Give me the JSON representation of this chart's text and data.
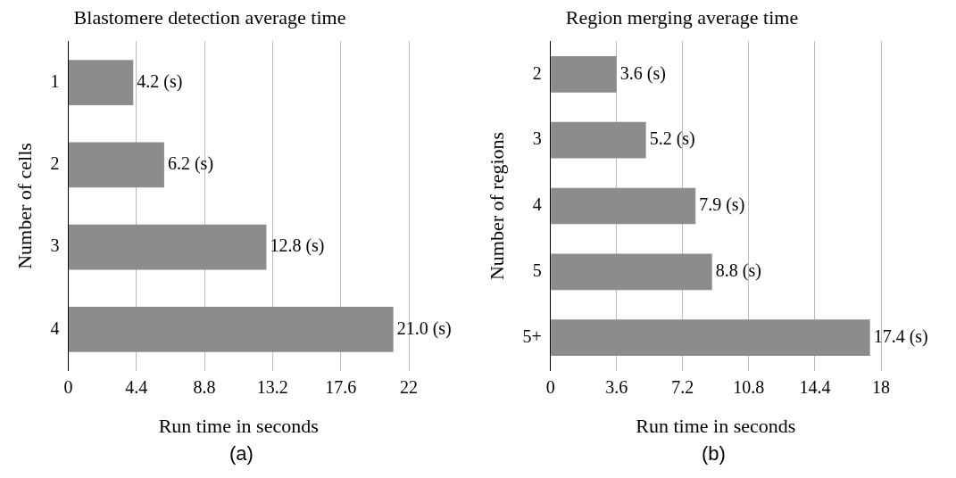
{
  "chart_data": [
    {
      "type": "bar",
      "orientation": "horizontal",
      "title": "Blastomere detection average time",
      "xlabel": "Run time in seconds",
      "ylabel": "Number of cells",
      "categories": [
        "1",
        "2",
        "3",
        "4"
      ],
      "values": [
        4.2,
        6.2,
        12.8,
        21.0
      ],
      "value_labels": [
        "4.2 (s)",
        "6.2 (s)",
        "12.8 (s)",
        "21.0 (s)"
      ],
      "color": "#8c8c8e",
      "xlim": [
        0,
        22
      ],
      "xticks": [
        0,
        4.4,
        8.8,
        13.2,
        17.6,
        22
      ],
      "grid": "x",
      "annotations": [
        "(a)"
      ]
    },
    {
      "type": "bar",
      "orientation": "horizontal",
      "title": "Region merging average time",
      "xlabel": "Run time in seconds",
      "ylabel": "Number of regions",
      "categories": [
        "2",
        "3",
        "4",
        "5",
        "5+"
      ],
      "values": [
        3.6,
        5.2,
        7.9,
        8.8,
        17.4
      ],
      "value_labels": [
        "3.6 (s)",
        "5.2 (s)",
        "7.9 (s)",
        "8.8 (s)",
        "17.4 (s)"
      ],
      "color": "#8c8c8e",
      "xlim": [
        0,
        18
      ],
      "xticks": [
        0,
        3.6,
        7.2,
        10.8,
        14.4,
        18
      ],
      "grid": "x",
      "annotations": [
        "(b)"
      ]
    }
  ]
}
